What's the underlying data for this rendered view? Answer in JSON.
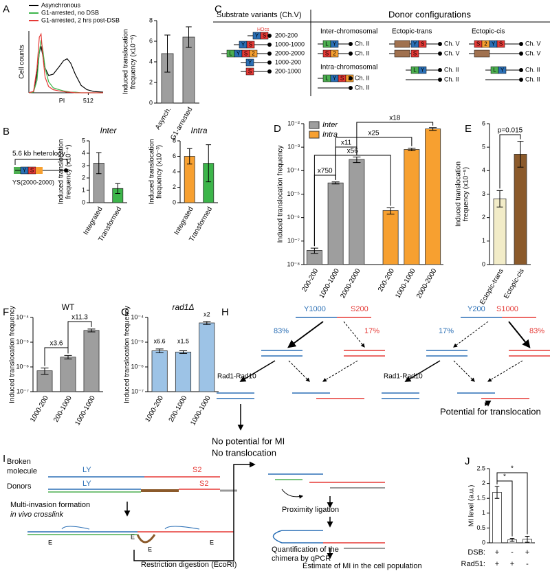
{
  "panels": [
    "A",
    "B",
    "C",
    "D",
    "E",
    "F",
    "G",
    "H",
    "I",
    "J"
  ],
  "chart_data": [
    {
      "type": "line",
      "x": [
        0,
        40,
        70,
        90,
        105,
        120,
        140,
        170,
        210,
        260,
        300,
        330,
        360,
        400,
        450,
        500,
        560,
        640
      ],
      "series": [
        {
          "name": "Asynchronous",
          "color": "#000000",
          "values": [
            0,
            2,
            30,
            65,
            75,
            60,
            40,
            28,
            30,
            42,
            52,
            55,
            48,
            30,
            12,
            5,
            2,
            1
          ]
        },
        {
          "name": "G1-arrested, no DSB",
          "color": "#3cb54a",
          "values": [
            0,
            1,
            20,
            65,
            85,
            70,
            40,
            18,
            8,
            5,
            3,
            2,
            1,
            1,
            0,
            0,
            0,
            0
          ]
        },
        {
          "name": "G1-arrested, 2 hrs post-DSB",
          "color": "#e53935",
          "values": [
            0,
            2,
            40,
            90,
            95,
            60,
            25,
            10,
            5,
            3,
            2,
            1,
            1,
            0,
            0,
            0,
            0,
            0
          ]
        }
      ],
      "xlim": [
        0,
        640
      ],
      "ylim": [
        0,
        100
      ],
      "xticks": [
        512
      ],
      "xlabel": "PI",
      "ylabel": [
        "Cell counts"
      ]
    },
    {
      "type": "bar",
      "categories": [
        "Asynch.",
        "G1-arrested"
      ],
      "values": [
        4.8,
        6.4
      ],
      "errors": [
        1.8,
        1.0
      ],
      "colors": [
        "#9e9e9e",
        "#9e9e9e"
      ],
      "ylim": [
        0,
        8
      ],
      "yticks": [
        0,
        2,
        4,
        6,
        8
      ],
      "ylabel": [
        "Induced translocation",
        "frequency (x10⁻⁶)"
      ]
    },
    {
      "type": "bar",
      "title": "Inter",
      "categories": [
        "Integrated",
        "Transformed"
      ],
      "values": [
        3.2,
        1.15
      ],
      "errors": [
        0.85,
        0.4
      ],
      "colors": [
        "#9e9e9e",
        "#3cb54a"
      ],
      "ylim": [
        0,
        5
      ],
      "yticks": [
        0,
        1,
        2,
        3,
        4,
        5
      ],
      "ylabel": [
        "Induced translocation",
        "frequency (x10⁻⁴)"
      ]
    },
    {
      "type": "bar",
      "title": "Intra",
      "categories": [
        "Integrated",
        "Transformed"
      ],
      "values": [
        6.0,
        5.1
      ],
      "errors": [
        1.0,
        2.4
      ],
      "colors": [
        "#f7a030",
        "#3cb54a"
      ],
      "ylim": [
        0,
        8
      ],
      "yticks": [
        0,
        2,
        4,
        6,
        8
      ],
      "ylabel": [
        "Induced translocation",
        "frequency (x10⁻³)"
      ]
    },
    {
      "type": "bar",
      "log_scale": true,
      "categories": [
        "200-200",
        "1000-1000",
        "2000-2000"
      ],
      "series": [
        {
          "name": "Inter",
          "color": "#9e9e9e",
          "values": [
            4e-08,
            3e-05,
            0.0003
          ],
          "errors": [
            1e-08,
            3e-06,
            8e-05
          ]
        },
        {
          "name": "Intra",
          "color": "#f7a030",
          "values": [
            2e-06,
            0.0008,
            0.006
          ],
          "errors": [
            6e-07,
            0.0001,
            0.0008
          ]
        }
      ],
      "ylim": [
        1e-08,
        0.01
      ],
      "yticks": [
        {
          "value": 1e-08,
          "label": "10⁻⁸"
        },
        {
          "value": 1e-07,
          "label": "10⁻⁷"
        },
        {
          "value": 1e-06,
          "label": "10⁻⁶"
        },
        {
          "value": 1e-05,
          "label": "10⁻⁵"
        },
        {
          "value": 0.0001,
          "label": "10⁻⁴"
        },
        {
          "value": 0.001,
          "label": "10⁻³"
        },
        {
          "value": 0.01,
          "label": "10⁻²"
        }
      ],
      "ylabel": [
        "Induced translocation frequency"
      ],
      "legend": "upper left",
      "annotations": [
        "x750",
        "x11",
        "x56",
        "x25",
        "x18"
      ]
    },
    {
      "type": "bar",
      "categories": [
        "Ectopic-trans",
        "Ectopic-cis"
      ],
      "values": [
        2.8,
        4.7
      ],
      "errors": [
        0.35,
        0.55
      ],
      "colors": [
        "#f2ecc8",
        "#8b5a2b"
      ],
      "ylim": [
        0,
        6
      ],
      "yticks": [
        0,
        1,
        2,
        3,
        4,
        5,
        6
      ],
      "ylabel": [
        "Induced translocation",
        "frequency (x10⁻⁵)"
      ],
      "annotations": [
        "p=0.015"
      ]
    },
    {
      "type": "bar",
      "title": "WT",
      "log_scale": true,
      "categories": [
        "1000-200",
        "200-1000",
        "1000-1000"
      ],
      "values": [
        7e-07,
        2.5e-06,
        3e-05
      ],
      "errors": [
        2e-07,
        4e-07,
        4e-06
      ],
      "colors": [
        "#9e9e9e",
        "#9e9e9e",
        "#9e9e9e"
      ],
      "ylim": [
        1e-07,
        0.0001
      ],
      "yticks": [
        {
          "value": 1e-07,
          "label": "10⁻⁷"
        },
        {
          "value": 1e-06,
          "label": "10⁻⁶"
        },
        {
          "value": 1e-05,
          "label": "10⁻⁵"
        },
        {
          "value": 0.0001,
          "label": "10⁻⁴"
        }
      ],
      "ylabel": [
        "Induced translocation frequency"
      ],
      "annotations": [
        "x3.6",
        "x11.3"
      ]
    },
    {
      "type": "bar",
      "title": "rad1Δ",
      "log_scale": true,
      "categories": [
        "1000-200",
        "200-1000",
        "1000-1000"
      ],
      "values": [
        4.5e-06,
        4e-06,
        6e-05
      ],
      "errors": [
        8e-07,
        5e-07,
        8e-06
      ],
      "colors": [
        "#9dc3e6",
        "#9dc3e6",
        "#9dc3e6"
      ],
      "ylim": [
        1e-07,
        0.0001
      ],
      "yticks": [
        {
          "value": 1e-07,
          "label": "10⁻⁷"
        },
        {
          "value": 1e-06,
          "label": "10⁻⁶"
        },
        {
          "value": 1e-05,
          "label": "10⁻⁵"
        },
        {
          "value": 0.0001,
          "label": "10⁻⁴"
        }
      ],
      "ylabel": [
        "Induced translocation frequency"
      ],
      "annotations": [
        "x6.6",
        "x1.5",
        "x2"
      ]
    },
    {
      "type": "bar",
      "values": [
        1.7,
        0.1,
        0.12
      ],
      "errors": [
        0.2,
        0.05,
        0.1
      ],
      "colors": [
        "#ffffff",
        "#ffffff",
        "#ffffff"
      ],
      "ylim": [
        0,
        2.5
      ],
      "yticks": [
        0,
        0.5,
        1,
        1.5,
        2,
        2.5
      ],
      "ylabel": [
        "MI level (a.u.)"
      ],
      "conditions": [
        {
          "name": "DSB:",
          "signs": [
            "+",
            "-",
            "+"
          ]
        },
        {
          "name": "Rad51:",
          "signs": [
            "+",
            "+",
            "-"
          ]
        }
      ],
      "annotations": [
        "*",
        "*"
      ]
    }
  ],
  "diagrams": {
    "B": {
      "heterology": "5.6 kb heterology",
      "construct": "YS(2000-2000)"
    },
    "C": {
      "substrate_title": "Substrate variants (Ch.V)",
      "donor_title": "Donor configurations",
      "substrates": [
        "200-200",
        "1000-1000",
        "2000-2000",
        "1000-200",
        "200-1000"
      ],
      "hocs": "HOcs",
      "inter": "Inter-chromosomal",
      "intra": "Intra-chromosomal",
      "trans": "Ectopic-trans",
      "cis": "Ectopic-cis",
      "ch2": "Ch. II",
      "ch5": "Ch. V",
      "blocks": [
        "L",
        "Y",
        "S",
        "2"
      ]
    },
    "H": {
      "left_donors": [
        "Y1000",
        "S200"
      ],
      "left_pct": [
        "83%",
        "17%"
      ],
      "right_donors": [
        "Y200",
        "S1000"
      ],
      "right_pct": [
        "17%",
        "83%"
      ],
      "nuclease": "Rad1-Rad10",
      "left_outcome": [
        "No potential for MI",
        "No translocation"
      ],
      "right_outcome": "Potential for translocation"
    },
    "I": {
      "broken": [
        "Broken",
        "molecule"
      ],
      "donors": "Donors",
      "ly": "LY",
      "s2": "S2",
      "step1": [
        "Multi-invasion formation",
        "in vivo crosslink"
      ],
      "site": "E",
      "step2": "Restriction digestion (EcoRI)",
      "step3": "Proximity ligation",
      "step4": [
        "Quantification of the",
        "chimera by qPCR"
      ],
      "step5": "Estimate of MI in the cell population"
    }
  }
}
